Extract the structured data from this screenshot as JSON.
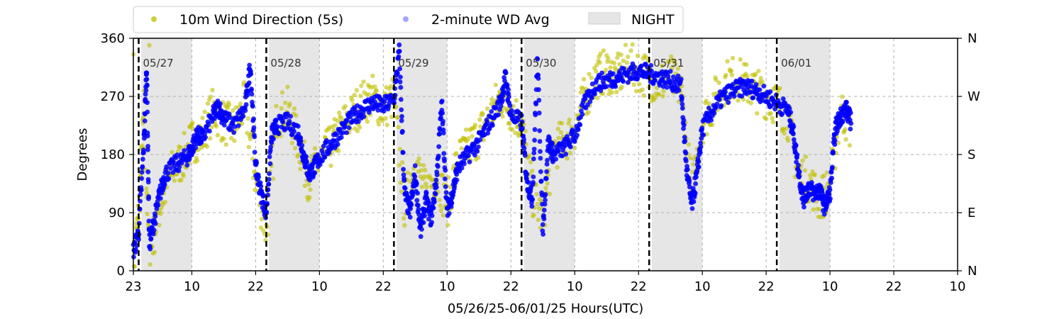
{
  "chart_data": {
    "type": "scatter",
    "xlabel": "05/26/25-06/01/25  Hours(UTC)",
    "ylabel": "Degrees",
    "ylim": [
      0,
      360
    ],
    "xlim_hours_utc": [
      "05/26 23:00",
      "06/02 10:00"
    ],
    "x_tick_labels": [
      "23",
      "10",
      "22",
      "10",
      "22",
      "10",
      "22",
      "10",
      "22",
      "10",
      "22",
      "10",
      "22",
      "10"
    ],
    "y_ticks": [
      0,
      90,
      180,
      270,
      360
    ],
    "y_tick_labels": [
      "0",
      "90",
      "180",
      "270",
      "360"
    ],
    "y2_tick_labels": [
      "N",
      "E",
      "S",
      "W",
      "N"
    ],
    "grid": true,
    "legend_placement": "top-left, above plot",
    "legend": [
      {
        "label": "10m Wind Direction (5s)",
        "color": "#bfbf00",
        "marker": "circle"
      },
      {
        "label": "2-minute WD Avg",
        "color": "#0000ff",
        "marker": "circle"
      },
      {
        "label": "NIGHT",
        "color": "#e6e6e6",
        "marker": "band"
      }
    ],
    "day_markers": [
      {
        "label": "05/27",
        "time": "05/27 00:00"
      },
      {
        "label": "05/28",
        "time": "05/28 00:00"
      },
      {
        "label": "05/29",
        "time": "05/29 00:00"
      },
      {
        "label": "05/30",
        "time": "05/30 00:00"
      },
      {
        "label": "05/31",
        "time": "05/31 00:00"
      },
      {
        "label": "06/01",
        "time": "06/01 00:00"
      }
    ],
    "night_periods": [
      [
        "05/27 00:30",
        "05/27 10:00"
      ],
      [
        "05/28 00:30",
        "05/28 10:00"
      ],
      [
        "05/29 00:30",
        "05/29 10:00"
      ],
      [
        "05/30 00:30",
        "05/30 10:00"
      ],
      [
        "05/31 00:30",
        "05/31 10:00"
      ],
      [
        "06/01 00:30",
        "06/01 10:00"
      ]
    ],
    "series": [
      {
        "name": "2-minute WD Avg",
        "color": "#0000ff",
        "points": [
          [
            "05/26 23:00",
            30
          ],
          [
            "05/27 00:00",
            60
          ],
          [
            "05/27 01:00",
            200
          ],
          [
            "05/27 01:30",
            320
          ],
          [
            "05/27 02:00",
            40
          ],
          [
            "05/27 03:00",
            80
          ],
          [
            "05/27 04:00",
            120
          ],
          [
            "05/27 05:00",
            150
          ],
          [
            "05/27 07:00",
            165
          ],
          [
            "05/27 09:00",
            175
          ],
          [
            "05/27 10:00",
            190
          ],
          [
            "05/27 11:00",
            210
          ],
          [
            "05/27 12:00",
            205
          ],
          [
            "05/27 14:00",
            240
          ],
          [
            "05/27 15:00",
            255
          ],
          [
            "05/27 16:00",
            235
          ],
          [
            "05/27 18:00",
            225
          ],
          [
            "05/27 20:00",
            250
          ],
          [
            "05/27 21:00",
            320
          ],
          [
            "05/27 22:00",
            160
          ],
          [
            "05/27 23:00",
            120
          ],
          [
            "05/28 00:00",
            90
          ],
          [
            "05/28 01:00",
            210
          ],
          [
            "05/28 02:00",
            225
          ],
          [
            "05/28 04:00",
            230
          ],
          [
            "05/28 06:00",
            215
          ],
          [
            "05/28 07:00",
            180
          ],
          [
            "05/28 08:00",
            150
          ],
          [
            "05/28 09:00",
            160
          ],
          [
            "05/28 10:00",
            175
          ],
          [
            "05/28 12:00",
            195
          ],
          [
            "05/28 14:00",
            215
          ],
          [
            "05/28 16:00",
            235
          ],
          [
            "05/28 18:00",
            250
          ],
          [
            "05/28 20:00",
            260
          ],
          [
            "05/28 22:00",
            255
          ],
          [
            "05/29 00:00",
            265
          ],
          [
            "05/29 01:00",
            340
          ],
          [
            "05/29 02:00",
            120
          ],
          [
            "05/29 03:00",
            90
          ],
          [
            "05/29 04:00",
            150
          ],
          [
            "05/29 05:00",
            60
          ],
          [
            "05/29 06:00",
            110
          ],
          [
            "05/29 07:00",
            80
          ],
          [
            "05/29 08:00",
            140
          ],
          [
            "05/29 09:00",
            260
          ],
          [
            "05/29 10:00",
            90
          ],
          [
            "05/29 11:00",
            120
          ],
          [
            "05/29 12:00",
            160
          ],
          [
            "05/29 14:00",
            180
          ],
          [
            "05/29 16:00",
            200
          ],
          [
            "05/29 18:00",
            230
          ],
          [
            "05/29 20:00",
            260
          ],
          [
            "05/29 21:00",
            300
          ],
          [
            "05/29 22:00",
            240
          ],
          [
            "05/30 00:00",
            230
          ],
          [
            "05/30 01:00",
            140
          ],
          [
            "05/30 02:00",
            110
          ],
          [
            "05/30 03:00",
            330
          ],
          [
            "05/30 04:00",
            60
          ],
          [
            "05/30 05:00",
            200
          ],
          [
            "05/30 06:00",
            180
          ],
          [
            "05/30 08:00",
            190
          ],
          [
            "05/30 10:00",
            210
          ],
          [
            "05/30 12:00",
            260
          ],
          [
            "05/30 14:00",
            290
          ],
          [
            "05/30 16:00",
            295
          ],
          [
            "05/30 18:00",
            300
          ],
          [
            "05/30 20:00",
            305
          ],
          [
            "05/30 22:00",
            310
          ],
          [
            "05/31 00:00",
            305
          ],
          [
            "05/31 02:00",
            300
          ],
          [
            "05/31 04:00",
            295
          ],
          [
            "05/31 06:00",
            285
          ],
          [
            "05/31 07:00",
            160
          ],
          [
            "05/31 08:00",
            100
          ],
          [
            "05/31 09:00",
            150
          ],
          [
            "05/31 10:00",
            220
          ],
          [
            "05/31 12:00",
            250
          ],
          [
            "05/31 14:00",
            270
          ],
          [
            "05/31 16:00",
            280
          ],
          [
            "05/31 18:00",
            285
          ],
          [
            "05/31 20:00",
            280
          ],
          [
            "05/31 22:00",
            270
          ],
          [
            "06/01 00:00",
            260
          ],
          [
            "06/01 02:00",
            250
          ],
          [
            "06/01 03:00",
            220
          ],
          [
            "06/01 04:00",
            160
          ],
          [
            "06/01 05:00",
            110
          ],
          [
            "06/01 06:00",
            130
          ],
          [
            "06/01 07:00",
            120
          ],
          [
            "06/01 08:00",
            125
          ],
          [
            "06/01 09:00",
            100
          ],
          [
            "06/01 10:00",
            120
          ],
          [
            "06/01 11:00",
            220
          ],
          [
            "06/01 12:00",
            240
          ],
          [
            "06/01 13:00",
            250
          ],
          [
            "06/01 14:00",
            230
          ]
        ]
      },
      {
        "name": "10m Wind Direction (5s)",
        "color": "#bfbf00",
        "points": [
          [
            "05/26 23:00",
            10
          ],
          [
            "05/27 00:00",
            90
          ],
          [
            "05/27 01:00",
            250
          ],
          [
            "05/27 02:00",
            20
          ],
          [
            "05/27 04:00",
            100
          ],
          [
            "05/27 06:00",
            150
          ],
          [
            "05/27 08:00",
            170
          ],
          [
            "05/27 10:00",
            200
          ],
          [
            "05/27 12:00",
            210
          ],
          [
            "05/27 14:00",
            250
          ],
          [
            "05/27 16:00",
            230
          ],
          [
            "05/27 18:00",
            220
          ],
          [
            "05/27 20:00",
            260
          ],
          [
            "05/27 22:00",
            140
          ],
          [
            "05/28 00:00",
            60
          ],
          [
            "05/28 02:00",
            240
          ],
          [
            "05/28 04:00",
            250
          ],
          [
            "05/28 06:00",
            200
          ],
          [
            "05/28 08:00",
            140
          ],
          [
            "05/28 10:00",
            170
          ],
          [
            "05/28 12:00",
            190
          ],
          [
            "05/28 14:00",
            220
          ],
          [
            "05/28 16:00",
            240
          ],
          [
            "05/28 18:00",
            260
          ],
          [
            "05/28 20:00",
            270
          ],
          [
            "05/28 22:00",
            250
          ],
          [
            "05/29 00:00",
            270
          ],
          [
            "05/29 02:00",
            100
          ],
          [
            "05/29 04:00",
            170
          ],
          [
            "05/29 06:00",
            120
          ],
          [
            "05/29 08:00",
            150
          ],
          [
            "05/29 10:00",
            100
          ],
          [
            "05/29 12:00",
            170
          ],
          [
            "05/29 14:00",
            190
          ],
          [
            "05/29 16:00",
            210
          ],
          [
            "05/29 18:00",
            240
          ],
          [
            "05/29 20:00",
            270
          ],
          [
            "05/29 22:00",
            250
          ],
          [
            "05/30 00:00",
            230
          ],
          [
            "05/30 02:00",
            120
          ],
          [
            "05/30 04:00",
            80
          ],
          [
            "05/30 06:00",
            190
          ],
          [
            "05/30 08:00",
            200
          ],
          [
            "05/30 10:00",
            220
          ],
          [
            "05/30 12:00",
            270
          ],
          [
            "05/30 14:00",
            300
          ],
          [
            "05/30 16:00",
            310
          ],
          [
            "05/30 18:00",
            300
          ],
          [
            "05/30 20:00",
            320
          ],
          [
            "05/30 22:00",
            310
          ],
          [
            "05/31 00:00",
            300
          ],
          [
            "05/31 02:00",
            290
          ],
          [
            "05/31 04:00",
            300
          ],
          [
            "05/31 06:00",
            280
          ],
          [
            "05/31 08:00",
            120
          ],
          [
            "05/31 10:00",
            230
          ],
          [
            "05/31 12:00",
            260
          ],
          [
            "05/31 14:00",
            290
          ],
          [
            "05/31 16:00",
            300
          ],
          [
            "05/31 18:00",
            290
          ],
          [
            "05/31 20:00",
            280
          ],
          [
            "05/31 22:00",
            270
          ],
          [
            "06/01 00:00",
            260
          ],
          [
            "06/01 02:00",
            240
          ],
          [
            "06/01 04:00",
            150
          ],
          [
            "06/01 06:00",
            140
          ],
          [
            "06/01 08:00",
            110
          ],
          [
            "06/01 10:00",
            130
          ],
          [
            "06/01 12:00",
            250
          ],
          [
            "06/01 14:00",
            220
          ]
        ]
      }
    ]
  }
}
